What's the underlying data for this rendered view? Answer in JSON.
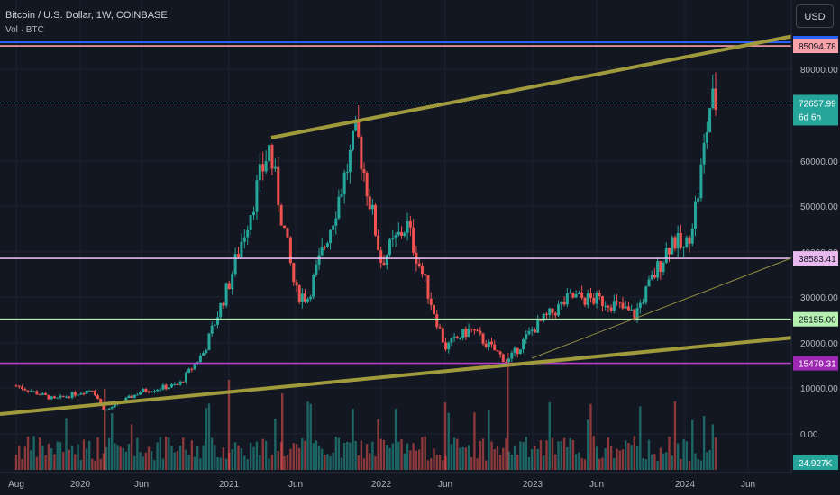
{
  "header": {
    "title": "Bitcoin / U.S. Dollar, 1W, COINBASE",
    "volume_label": "Vol · BTC",
    "currency_button": "USD"
  },
  "colors": {
    "background": "#131722",
    "grid": "#1e222d",
    "up": "#26a69a",
    "down": "#ef5350",
    "trendline": "#a09a3c",
    "thin_trendline": "#8f8a3f"
  },
  "chart_data": {
    "type": "candlestick",
    "title": "Bitcoin / U.S. Dollar, 1W, COINBASE",
    "y_axis": {
      "ticks": [
        0,
        10000,
        20000,
        30000,
        40000,
        50000,
        60000,
        80000
      ],
      "tick_labels": [
        "0.00",
        "10000.00",
        "20000.00",
        "30000.00",
        "40000.00",
        "50000.00",
        "60000.00",
        "80000.00"
      ],
      "scale": "log-like (price axis)"
    },
    "x_axis": {
      "tick_labels": [
        "Aug",
        "2020",
        "Jun",
        "2021",
        "Jun",
        "2022",
        "Jun",
        "2023",
        "Jun",
        "2024",
        "Jun"
      ]
    },
    "price_path_anchors": [
      {
        "x": "2019-08",
        "close": 10500
      },
      {
        "x": "2019-11",
        "close": 7500
      },
      {
        "x": "2020-02",
        "close": 9800
      },
      {
        "x": "2020-03",
        "close": 5000
      },
      {
        "x": "2020-06",
        "close": 9300
      },
      {
        "x": "2020-09",
        "close": 10700
      },
      {
        "x": "2020-11",
        "close": 18000
      },
      {
        "x": "2021-01",
        "close": 33000
      },
      {
        "x": "2021-04",
        "close": 63000
      },
      {
        "x": "2021-06",
        "close": 31000
      },
      {
        "x": "2021-07",
        "close": 30000
      },
      {
        "x": "2021-09",
        "close": 47000
      },
      {
        "x": "2021-11",
        "close": 66000
      },
      {
        "x": "2022-01",
        "close": 38000
      },
      {
        "x": "2022-03",
        "close": 46000
      },
      {
        "x": "2022-06",
        "close": 19000
      },
      {
        "x": "2022-08",
        "close": 23000
      },
      {
        "x": "2022-11",
        "close": 15800
      },
      {
        "x": "2023-01",
        "close": 23000
      },
      {
        "x": "2023-04",
        "close": 30000
      },
      {
        "x": "2023-07",
        "close": 29000
      },
      {
        "x": "2023-09",
        "close": 26000
      },
      {
        "x": "2023-12",
        "close": 43000
      },
      {
        "x": "2024-01",
        "close": 40000
      },
      {
        "x": "2024-02",
        "close": 52000
      },
      {
        "x": "2024-03",
        "close": 72657.99
      }
    ],
    "horizontal_levels": [
      {
        "value": "85094.78",
        "color": "#f7a1a8",
        "label_bg": "#f7a1a8",
        "label_color": "#131722"
      },
      {
        "value": "38583.41",
        "color": "#e8b8ee",
        "label_bg": "#e8b8ee",
        "label_color": "#131722"
      },
      {
        "value": "25155.00",
        "color": "#b5f0b0",
        "label_bg": "#b5f0b0",
        "label_color": "#131722"
      },
      {
        "value": "15479.31",
        "color": "#b63fc9",
        "label_bg": "#9c27b0",
        "label_color": "#ffffff"
      }
    ],
    "extra_level": {
      "value": "83913.87",
      "color": "#2962ff"
    },
    "current_price": {
      "value": "72657.99",
      "countdown": "6d 6h"
    },
    "volume": {
      "current_label": "24.927K"
    },
    "trendlines": [
      "upper channel",
      "lower channel",
      "inner support"
    ]
  }
}
